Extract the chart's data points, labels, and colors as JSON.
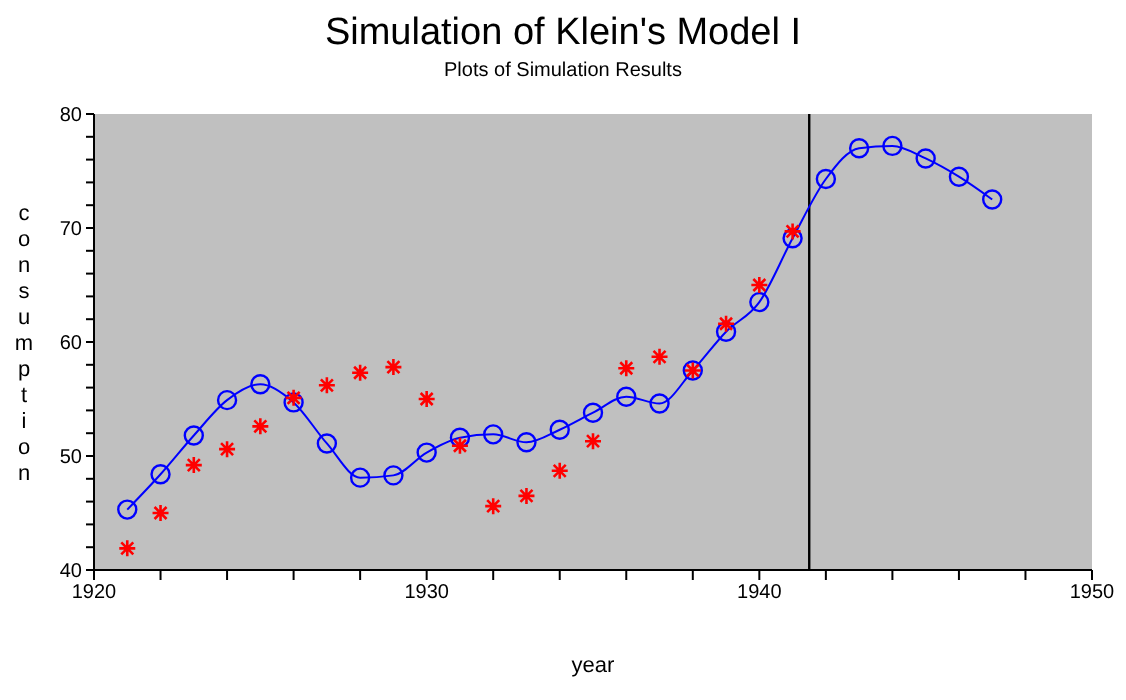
{
  "chart_data": {
    "type": "line",
    "title": "Simulation of Klein's Model I",
    "subtitle": "Plots of Simulation Results",
    "xlabel": "year",
    "ylabel": "consumption",
    "series": [
      {
        "marker": "circle",
        "color": "#0000ff",
        "x": [
          1921,
          1922,
          1923,
          1924,
          1925,
          1926,
          1927,
          1928,
          1929,
          1930,
          1931,
          1932,
          1933,
          1934,
          1935,
          1936,
          1937,
          1938,
          1939,
          1940,
          1941,
          1942,
          1943,
          1944,
          1945,
          1946,
          1947
        ],
        "values": [
          45.3,
          48.4,
          51.8,
          54.9,
          56.3,
          54.7,
          51.1,
          48.1,
          48.3,
          50.3,
          51.6,
          51.9,
          51.2,
          52.3,
          53.8,
          55.2,
          54.6,
          57.5,
          60.9,
          63.5,
          69.1,
          74.3,
          77.0,
          77.2,
          76.1,
          74.5,
          72.5
        ]
      },
      {
        "type": "scatter",
        "marker": "cross",
        "color": "#ff0000",
        "x": [
          1921,
          1922,
          1923,
          1924,
          1925,
          1926,
          1927,
          1928,
          1929,
          1930,
          1931,
          1932,
          1933,
          1934,
          1935,
          1936,
          1937,
          1938,
          1939,
          1940,
          1941
        ],
        "values": [
          41.9,
          45.0,
          49.2,
          50.6,
          52.6,
          55.1,
          56.2,
          57.3,
          57.8,
          55.0,
          50.9,
          45.6,
          46.5,
          48.7,
          51.3,
          57.7,
          58.7,
          57.5,
          61.6,
          65.0,
          69.7
        ]
      }
    ],
    "xlim": [
      1920,
      1950
    ],
    "xticks": [
      1920,
      {
        "value": 1922,
        "label": null
      },
      {
        "value": 1924,
        "label": null
      },
      {
        "value": 1926,
        "label": null
      },
      {
        "value": 1928,
        "label": null
      },
      1930,
      {
        "value": 1932,
        "label": null
      },
      {
        "value": 1934,
        "label": null
      },
      {
        "value": 1936,
        "label": null
      },
      {
        "value": 1938,
        "label": null
      },
      1940,
      {
        "value": 1942,
        "label": null
      },
      {
        "value": 1944,
        "label": null
      },
      {
        "value": 1946,
        "label": null
      },
      {
        "value": 1948,
        "label": null
      },
      1950
    ],
    "ylim": [
      40,
      80
    ],
    "yticks": [
      40,
      {
        "value": 42,
        "label": null
      },
      {
        "value": 44,
        "label": null
      },
      {
        "value": 46,
        "label": null
      },
      {
        "value": 48,
        "label": null
      },
      50,
      {
        "value": 52,
        "label": null
      },
      {
        "value": 54,
        "label": null
      },
      {
        "value": 56,
        "label": null
      },
      {
        "value": 58,
        "label": null
      },
      60,
      {
        "value": 62,
        "label": null
      },
      {
        "value": 64,
        "label": null
      },
      {
        "value": 66,
        "label": null
      },
      {
        "value": 68,
        "label": null
      },
      70,
      {
        "value": 72,
        "label": null
      },
      {
        "value": 74,
        "label": null
      },
      {
        "value": 76,
        "label": null
      },
      {
        "value": 78,
        "label": null
      },
      80
    ],
    "ref_lines": [
      {
        "axis": "x",
        "value": 1941.5,
        "color": "#000000"
      }
    ],
    "grid": false,
    "legend": false
  }
}
